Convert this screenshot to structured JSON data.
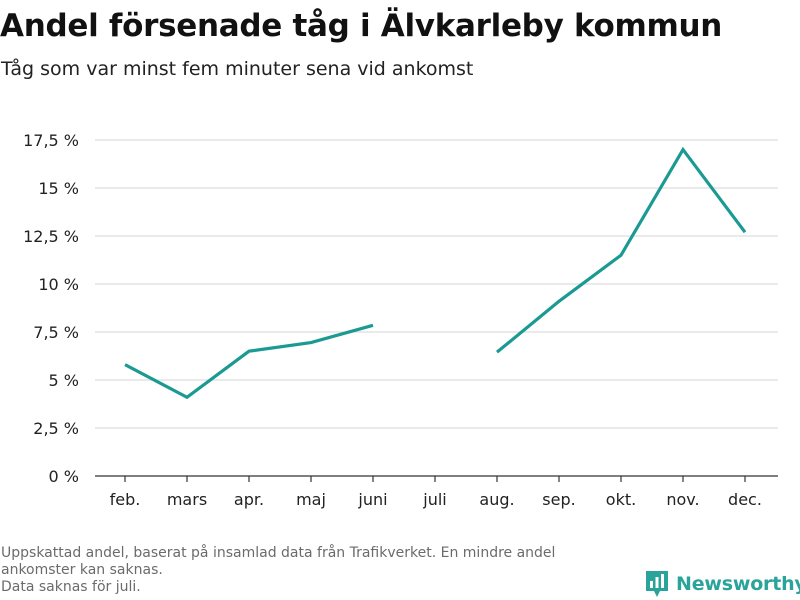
{
  "header": {
    "title": "Andel försenade tåg i Älvkarleby kommun",
    "subtitle": "Tåg som var minst fem minuter sena vid ankomst"
  },
  "footnote": {
    "line1": "Uppskattad andel, baserat på insamlad data från Trafikverket. En mindre andel",
    "line2": "ankomster kan saknas.",
    "line3": "Data saknas för juli."
  },
  "brand": {
    "name": "Newsworthy",
    "logo_icon": "bar-chart-icon",
    "color": "#2aa39a"
  },
  "colors": {
    "line": "#1a9a93",
    "grid": "#dddddd",
    "axis": "#333333"
  },
  "chart_data": {
    "type": "line",
    "categories": [
      "feb.",
      "mars",
      "apr.",
      "maj",
      "juni",
      "juli",
      "aug.",
      "sep.",
      "okt.",
      "nov.",
      "dec."
    ],
    "series": [
      {
        "values": [
          5.8,
          4.1,
          6.5,
          6.95,
          7.85,
          null,
          6.45,
          9.1,
          11.5,
          17.0,
          12.7
        ]
      }
    ],
    "ylim": [
      0,
      17.5
    ],
    "yticks": [
      0,
      2.5,
      5,
      7.5,
      10,
      12.5,
      15,
      17.5
    ],
    "ytick_labels": [
      "0 %",
      "2,5 %",
      "5 %",
      "7,5 %",
      "10 %",
      "12,5 %",
      "15 %",
      "17,5 %"
    ],
    "grid": true,
    "legend": "none"
  }
}
